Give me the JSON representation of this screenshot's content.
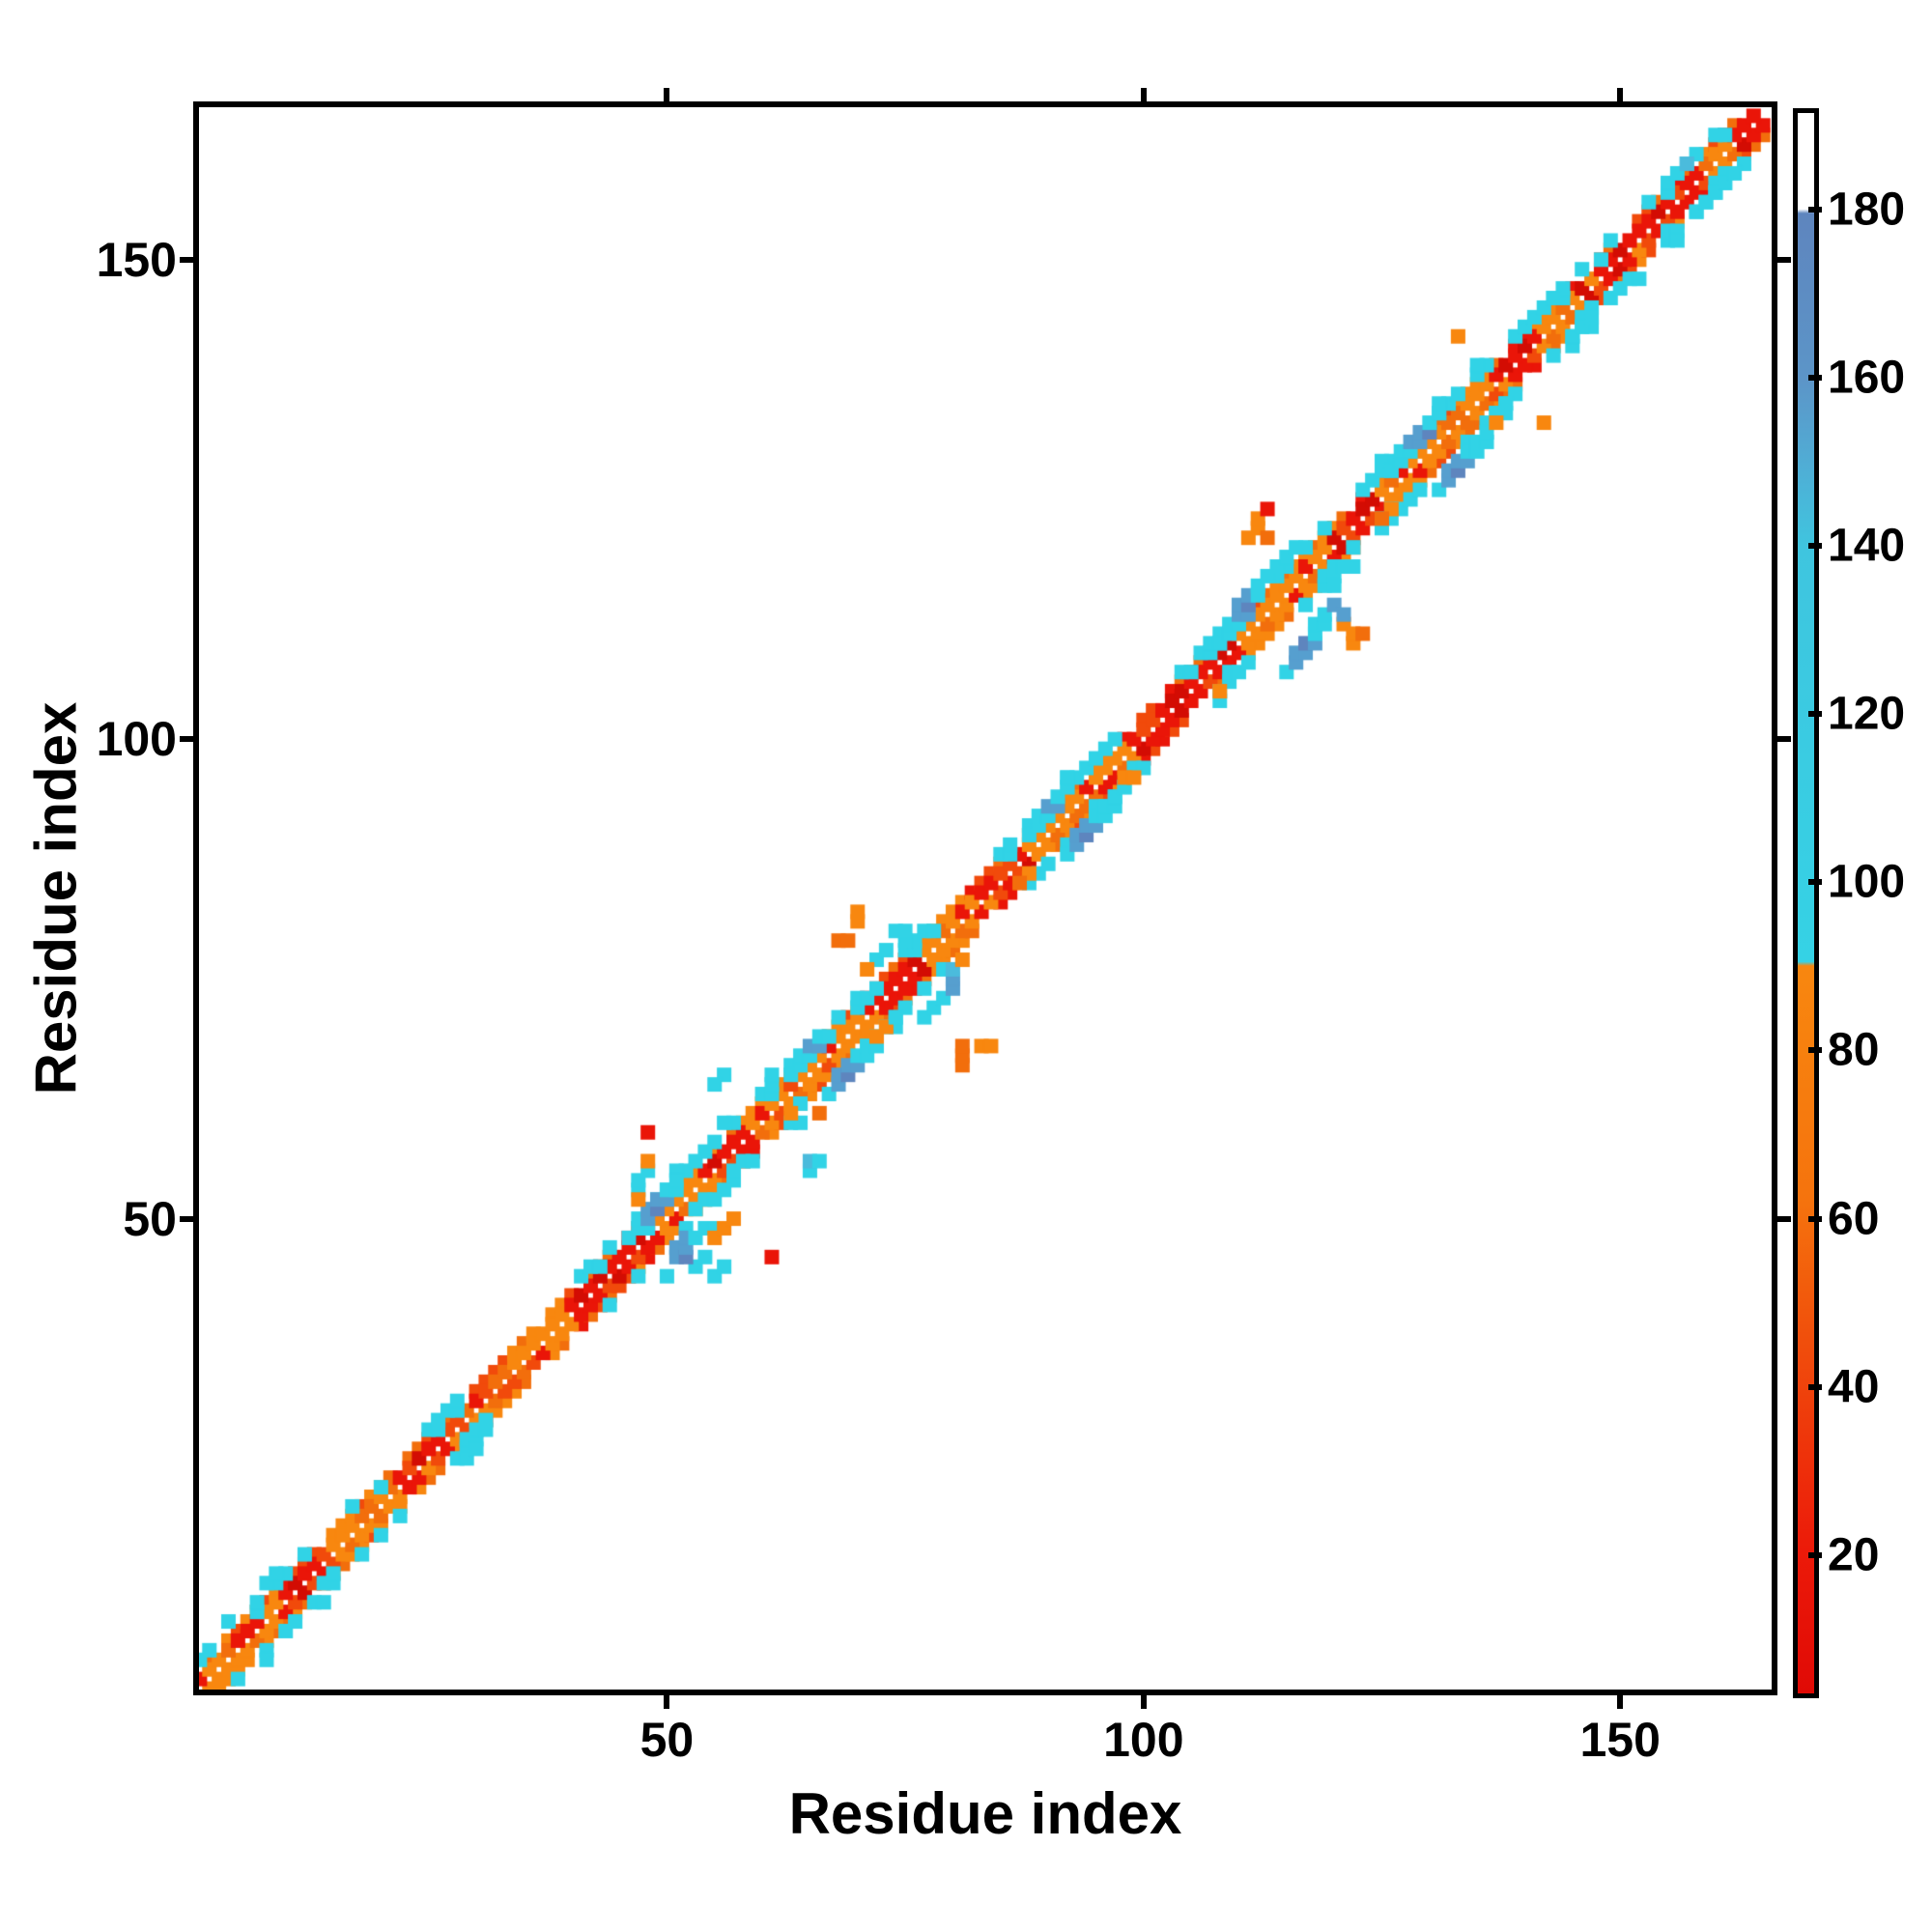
{
  "labels": {
    "x_axis": "Residue index",
    "y_axis": "Residue index"
  },
  "axes": {
    "x_ticks": [
      50,
      100,
      150
    ],
    "y_ticks": [
      50,
      100,
      150
    ],
    "value_min": 0.3,
    "value_max": 166.5
  },
  "colorbar": {
    "ticks": [
      20,
      40,
      60,
      80,
      100,
      120,
      140,
      160,
      180
    ],
    "value_min": 3,
    "value_max": 192,
    "stops": [
      [
        192,
        "#FFFFFF"
      ],
      [
        180.5,
        "#FFFFFF"
      ],
      [
        180,
        "#5E85BE"
      ],
      [
        160,
        "#5C95C8"
      ],
      [
        150,
        "#50ADD5"
      ],
      [
        140,
        "#3FC5DF"
      ],
      [
        90.5,
        "#35D2E5"
      ],
      [
        90,
        "#F8870F"
      ],
      [
        62,
        "#F5730D"
      ],
      [
        45,
        "#F04E0C"
      ],
      [
        20,
        "#EC1A09"
      ],
      [
        3,
        "#E00A05"
      ]
    ]
  },
  "chart_data": {
    "type": "heatmap",
    "title": "",
    "xlabel": "Residue index",
    "ylabel": "Residue index",
    "x_range": [
      0.3,
      166.5
    ],
    "y_range": [
      0.3,
      166.5
    ],
    "x_ticks": [
      50,
      100,
      150
    ],
    "y_ticks": [
      50,
      100,
      150
    ],
    "grid": false,
    "legend": "vertical colorbar on right, range 3-192, ticks every 20 from 20 to 180",
    "description": "Symmetric protein residue-residue contact map. Near-diagonal contacts (|i-j| 1-2) form a red/orange checkered band over residues 2-165; cyan/steel-blue clusters of longer-range contacts appear around residue positions 50, 68, 93, 113, 131, 145 and 158; a few isolated orange/red contacts lie off the band. Color encodes the colorbar scalar (red~low, orange~mid-low, cyan~mid-high, steel blue~high, white>180).",
    "cluster_centers": [
      50,
      68,
      93,
      113,
      131,
      145,
      158
    ],
    "contact_map": {
      "residue_start": 2,
      "residue_end": 165,
      "marker_px": 15,
      "palette": {
        "r": {
          "hex": "#EA1508",
          "approx_value": 12
        },
        "d": {
          "hex": "#D30C03",
          "approx_value": 6
        },
        "R": {
          "hex": "#F14A0B",
          "approx_value": 42
        },
        "O": {
          "hex": "#F26E0C",
          "approx_value": 62
        },
        "o": {
          "hex": "#F8870F",
          "approx_value": 80
        },
        "c": {
          "hex": "#31D3E6",
          "approx_value": 110
        },
        "C": {
          "hex": "#4BBBDC",
          "approx_value": 145
        },
        "b": {
          "hex": "#569FCF",
          "approx_value": 160
        },
        "B": {
          "hex": "#5E85BE",
          "approx_value": 175
        }
      },
      "band_segments": [
        {
          "from": 2,
          "to": 11,
          "type": "o"
        },
        {
          "from": 12,
          "to": 14,
          "type": "r"
        },
        {
          "from": 15,
          "to": 22,
          "type": "o"
        },
        {
          "from": 23,
          "to": 27,
          "type": "r"
        },
        {
          "from": 28,
          "to": 40,
          "type": "o"
        },
        {
          "from": 41,
          "to": 49,
          "type": "r"
        },
        {
          "from": 50,
          "to": 55,
          "type": "o"
        },
        {
          "from": 56,
          "to": 59,
          "type": "r"
        },
        {
          "from": 60,
          "to": 72,
          "type": "o"
        },
        {
          "from": 73,
          "to": 77,
          "type": "r"
        },
        {
          "from": 78,
          "to": 83,
          "type": "o"
        },
        {
          "from": 84,
          "to": 88,
          "type": "r"
        },
        {
          "from": 89,
          "to": 99,
          "type": "o"
        },
        {
          "from": 100,
          "to": 110,
          "type": "r"
        },
        {
          "from": 111,
          "to": 120,
          "type": "o"
        },
        {
          "from": 121,
          "to": 125,
          "type": "r"
        },
        {
          "from": 126,
          "to": 138,
          "type": "o"
        },
        {
          "from": 139,
          "to": 142,
          "type": "r"
        },
        {
          "from": 143,
          "to": 146,
          "type": "o"
        },
        {
          "from": 147,
          "to": 159,
          "type": "r"
        },
        {
          "from": 160,
          "to": 162,
          "type": "o"
        },
        {
          "from": 163,
          "to": 165,
          "type": "r"
        }
      ],
      "halo_ranges": [
        [
          3,
          5
        ],
        [
          8,
          11
        ],
        [
          12,
          18
        ],
        [
          20,
          22
        ],
        [
          27,
          31
        ],
        [
          44,
          47
        ],
        [
          52,
          60
        ],
        [
          63,
          66
        ],
        [
          71,
          75
        ],
        [
          77,
          80
        ],
        [
          88,
          92
        ],
        [
          95,
          100
        ],
        [
          107,
          111
        ],
        [
          117,
          122
        ],
        [
          125,
          129
        ],
        [
          134,
          139
        ],
        [
          142,
          147
        ],
        [
          149,
          152
        ],
        [
          155,
          163
        ]
      ],
      "cells": [
        [
          "c",
          46,
          48
        ],
        [
          "c",
          47,
          49
        ],
        [
          "c",
          47,
          50
        ],
        [
          "c",
          48,
          49
        ],
        [
          "b",
          48,
          50
        ],
        [
          "b",
          48,
          51
        ],
        [
          "B",
          49,
          51
        ],
        [
          "b",
          49,
          52
        ],
        [
          "b",
          50,
          52
        ],
        [
          "c",
          50,
          53
        ],
        [
          "c",
          51,
          53
        ],
        [
          "c",
          51,
          54
        ],
        [
          "c",
          47,
          53
        ],
        [
          "c",
          47,
          54
        ],
        [
          "c",
          48,
          55
        ],
        [
          "o",
          48,
          56
        ],
        [
          "o",
          47,
          52
        ],
        [
          "c",
          50,
          44
        ],
        [
          "c",
          53,
          45
        ],
        [
          "c",
          54,
          46
        ],
        [
          "b",
          51,
          46
        ],
        [
          "b",
          51,
          47
        ],
        [
          "B",
          52,
          46
        ],
        [
          "b",
          52,
          47
        ],
        [
          "b",
          52,
          48
        ],
        [
          "c",
          53,
          48
        ],
        [
          "c",
          54,
          49
        ],
        [
          "c",
          55,
          49
        ],
        [
          "o",
          55,
          48
        ],
        [
          "o",
          56,
          49
        ],
        [
          "o",
          57,
          50
        ],
        [
          "c",
          55,
          44
        ],
        [
          "c",
          56,
          45
        ],
        [
          "r",
          61,
          46
        ],
        [
          "r",
          48,
          59
        ],
        [
          "c",
          65,
          55
        ],
        [
          "C",
          65,
          56
        ],
        [
          "c",
          66,
          56
        ],
        [
          "c",
          56,
          65
        ],
        [
          "c",
          55,
          64
        ],
        [
          "c",
          63,
          65
        ],
        [
          "c",
          64,
          66
        ],
        [
          "c",
          64,
          67
        ],
        [
          "c",
          65,
          67
        ],
        [
          "b",
          65,
          68
        ],
        [
          "b",
          66,
          68
        ],
        [
          "c",
          66,
          69
        ],
        [
          "c",
          67,
          69
        ],
        [
          "c",
          67,
          63
        ],
        [
          "b",
          68,
          64
        ],
        [
          "b",
          68,
          65
        ],
        [
          "B",
          69,
          65
        ],
        [
          "b",
          69,
          66
        ],
        [
          "b",
          70,
          66
        ],
        [
          "c",
          70,
          67
        ],
        [
          "c",
          71,
          67
        ],
        [
          "c",
          71,
          68
        ],
        [
          "c",
          72,
          68
        ],
        [
          "o",
          72,
          69
        ],
        [
          "o",
          73,
          70
        ],
        [
          "O",
          66,
          61
        ],
        [
          "o",
          63,
          61
        ],
        [
          "c",
          74,
          71
        ],
        [
          "c",
          77,
          71
        ],
        [
          "c",
          78,
          72
        ],
        [
          "c",
          79,
          73
        ],
        [
          "b",
          80,
          74
        ],
        [
          "b",
          80,
          75
        ],
        [
          "C",
          80,
          76
        ],
        [
          "o",
          81,
          77
        ],
        [
          "c",
          72,
          77
        ],
        [
          "c",
          73,
          78
        ],
        [
          "c",
          74,
          80
        ],
        [
          "c",
          75,
          80
        ],
        [
          "o",
          71,
          76
        ],
        [
          "O",
          68,
          79
        ],
        [
          "O",
          69,
          79
        ],
        [
          "o",
          70,
          81
        ],
        [
          "o",
          70,
          82
        ],
        [
          "O",
          81,
          66
        ],
        [
          "O",
          81,
          67
        ],
        [
          "O",
          81,
          68
        ],
        [
          "o",
          83,
          68
        ],
        [
          "o",
          84,
          68
        ],
        [
          "c",
          88,
          90
        ],
        [
          "c",
          89,
          91
        ],
        [
          "c",
          89,
          92
        ],
        [
          "c",
          90,
          92
        ],
        [
          "b",
          90,
          93
        ],
        [
          "b",
          91,
          93
        ],
        [
          "c",
          91,
          94
        ],
        [
          "c",
          92,
          95
        ],
        [
          "c",
          92,
          96
        ],
        [
          "c",
          92,
          88
        ],
        [
          "b",
          93,
          89
        ],
        [
          "b",
          93,
          90
        ],
        [
          "B",
          94,
          90
        ],
        [
          "b",
          94,
          91
        ],
        [
          "b",
          95,
          91
        ],
        [
          "c",
          95,
          92
        ],
        [
          "c",
          96,
          92
        ],
        [
          "c",
          96,
          93
        ],
        [
          "c",
          97,
          93
        ],
        [
          "c",
          97,
          94
        ],
        [
          "c",
          98,
          95
        ],
        [
          "o",
          88,
          86
        ],
        [
          "o",
          98,
          96
        ],
        [
          "o",
          99,
          96
        ],
        [
          "O",
          87,
          85
        ],
        [
          "c",
          108,
          110
        ],
        [
          "c",
          109,
          111
        ],
        [
          "c",
          109,
          112
        ],
        [
          "c",
          110,
          112
        ],
        [
          "b",
          110,
          113
        ],
        [
          "b",
          111,
          113
        ],
        [
          "b",
          110,
          114
        ],
        [
          "B",
          111,
          114
        ],
        [
          "b",
          111,
          115
        ],
        [
          "c",
          112,
          115
        ],
        [
          "c",
          112,
          116
        ],
        [
          "c",
          113,
          117
        ],
        [
          "c",
          114,
          118
        ],
        [
          "c",
          115,
          119
        ],
        [
          "c",
          116,
          120
        ],
        [
          "c",
          115,
          107
        ],
        [
          "b",
          116,
          108
        ],
        [
          "b",
          116,
          109
        ],
        [
          "b",
          117,
          109
        ],
        [
          "B",
          117,
          110
        ],
        [
          "b",
          118,
          110
        ],
        [
          "c",
          118,
          111
        ],
        [
          "c",
          118,
          112
        ],
        [
          "c",
          119,
          112
        ],
        [
          "c",
          119,
          113
        ],
        [
          "o",
          111,
          121
        ],
        [
          "o",
          112,
          122
        ],
        [
          "o",
          112,
          123
        ],
        [
          "r",
          113,
          124
        ],
        [
          "O",
          113,
          121
        ],
        [
          "o",
          121,
          112
        ],
        [
          "o",
          122,
          110
        ],
        [
          "o",
          122,
          111
        ],
        [
          "O",
          123,
          111
        ],
        [
          "b",
          120,
          114
        ],
        [
          "b",
          121,
          113
        ],
        [
          "c",
          120,
          116
        ],
        [
          "o",
          108,
          105
        ],
        [
          "c",
          126,
          128
        ],
        [
          "c",
          127,
          129
        ],
        [
          "c",
          127,
          130
        ],
        [
          "c",
          128,
          130
        ],
        [
          "b",
          128,
          131
        ],
        [
          "b",
          129,
          131
        ],
        [
          "b",
          129,
          132
        ],
        [
          "B",
          130,
          132
        ],
        [
          "c",
          130,
          133
        ],
        [
          "c",
          131,
          134
        ],
        [
          "c",
          131,
          135
        ],
        [
          "c",
          131,
          126
        ],
        [
          "b",
          132,
          127
        ],
        [
          "b",
          132,
          128
        ],
        [
          "B",
          133,
          128
        ],
        [
          "b",
          133,
          129
        ],
        [
          "b",
          134,
          129
        ],
        [
          "c",
          134,
          130
        ],
        [
          "c",
          135,
          130
        ],
        [
          "c",
          135,
          131
        ],
        [
          "c",
          136,
          131
        ],
        [
          "c",
          136,
          132
        ],
        [
          "c",
          137,
          134
        ],
        [
          "o",
          126,
          124
        ],
        [
          "o",
          137,
          133
        ],
        [
          "O",
          125,
          123
        ],
        [
          "c",
          138,
          135
        ],
        [
          "o",
          142,
          133
        ],
        [
          "o",
          133,
          142
        ],
        [
          "c",
          145,
          142
        ],
        [
          "c",
          146,
          143
        ],
        [
          "c",
          147,
          144
        ],
        [
          "c",
          142,
          145
        ],
        [
          "c",
          143,
          146
        ],
        [
          "c",
          158,
          155
        ],
        [
          "c",
          159,
          156
        ],
        [
          "c",
          160,
          157
        ],
        [
          "c",
          155,
          158
        ],
        [
          "c",
          156,
          159
        ],
        [
          "C",
          157,
          160
        ],
        [
          "c",
          161,
          158
        ],
        [
          "c",
          162,
          159
        ]
      ]
    }
  }
}
